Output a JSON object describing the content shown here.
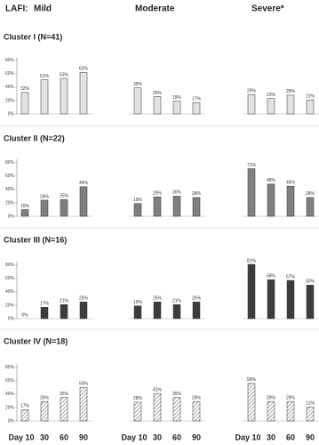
{
  "header": {
    "label": "LAFI:",
    "groups": [
      "Mild",
      "Moderate",
      "Severe*"
    ]
  },
  "x_labels": [
    "Day 10",
    "30",
    "60",
    "90"
  ],
  "chart_data": [
    {
      "type": "bar",
      "title": "Cluster I (N=41)",
      "color": "#e2e2e2",
      "pattern": null,
      "ylim": [
        0,
        85
      ],
      "yticks": [
        {
          "value": 0,
          "label": "0%"
        },
        {
          "value": 20,
          "label": "20%"
        },
        {
          "value": 40,
          "label": "40%"
        },
        {
          "value": 60,
          "label": "60%"
        },
        {
          "value": 80,
          "label": "80%"
        }
      ],
      "groups": [
        {
          "values": [
            32,
            51,
            53,
            62
          ],
          "value_labels": [
            "32%",
            "51%",
            "53%",
            "62%"
          ]
        },
        {
          "values": [
            39,
            26,
            19,
            17
          ],
          "value_labels": [
            "39%",
            "26%",
            "19%",
            "17%"
          ]
        },
        {
          "values": [
            29,
            23,
            28,
            21
          ],
          "value_labels": [
            "29%",
            "23%",
            "28%",
            "21%"
          ]
        }
      ]
    },
    {
      "type": "bar",
      "title": "Cluster II (N=22)",
      "color": "#808080",
      "pattern": null,
      "ylim": [
        0,
        85
      ],
      "yticks": [
        {
          "value": 0,
          "label": "0%"
        },
        {
          "value": 20,
          "label": "20%"
        },
        {
          "value": 40,
          "label": "40%"
        },
        {
          "value": 60,
          "label": "60%"
        },
        {
          "value": 80,
          "label": "80%"
        }
      ],
      "groups": [
        {
          "values": [
            10,
            24,
            25,
            44
          ],
          "value_labels": [
            "10%",
            "24%",
            "25%",
            "44%"
          ]
        },
        {
          "values": [
            19,
            29,
            30,
            28
          ],
          "value_labels": [
            "19%",
            "29%",
            "30%",
            "28%"
          ]
        },
        {
          "values": [
            71,
            48,
            45,
            28
          ],
          "value_labels": [
            "71%",
            "48%",
            "45%",
            "28%"
          ]
        }
      ]
    },
    {
      "type": "bar",
      "title": "Cluster III (N=16)",
      "color": "#3c3c3c",
      "pattern": null,
      "ylim": [
        0,
        85
      ],
      "yticks": [
        {
          "value": 0,
          "label": "0%"
        },
        {
          "value": 20,
          "label": "20%"
        },
        {
          "value": 40,
          "label": "40%"
        },
        {
          "value": 60,
          "label": "60%"
        },
        {
          "value": 80,
          "label": "80%"
        }
      ],
      "groups": [
        {
          "values": [
            0,
            17,
            21,
            25
          ],
          "value_labels": [
            "0%",
            "17%",
            "21%",
            "25%"
          ]
        },
        {
          "values": [
            19,
            25,
            21,
            25
          ],
          "value_labels": [
            "19%",
            "25%",
            "21%",
            "25%"
          ]
        },
        {
          "values": [
            81,
            58,
            57,
            50
          ],
          "value_labels": [
            "81%",
            "58%",
            "57%",
            "50%"
          ]
        }
      ]
    },
    {
      "type": "bar",
      "title": "Cluster IV (N=18)",
      "color": "#555555",
      "pattern": "hatch",
      "ylim": [
        0,
        85
      ],
      "yticks": [
        {
          "value": 0,
          "label": "0%"
        },
        {
          "value": 20,
          "label": "20%"
        },
        {
          "value": 40,
          "label": "40%"
        },
        {
          "value": 60,
          "label": "60%"
        },
        {
          "value": 80,
          "label": "80%"
        }
      ],
      "groups": [
        {
          "values": [
            17,
            29,
            35,
            50
          ],
          "value_labels": [
            "17%",
            "29%",
            "35%",
            "50%"
          ]
        },
        {
          "values": [
            28,
            41,
            35,
            29
          ],
          "value_labels": [
            "28%",
            "41%",
            "35%",
            "29%"
          ]
        },
        {
          "values": [
            56,
            29,
            29,
            21
          ],
          "value_labels": [
            "56%",
            "29%",
            "29%",
            "21%"
          ]
        }
      ]
    }
  ]
}
